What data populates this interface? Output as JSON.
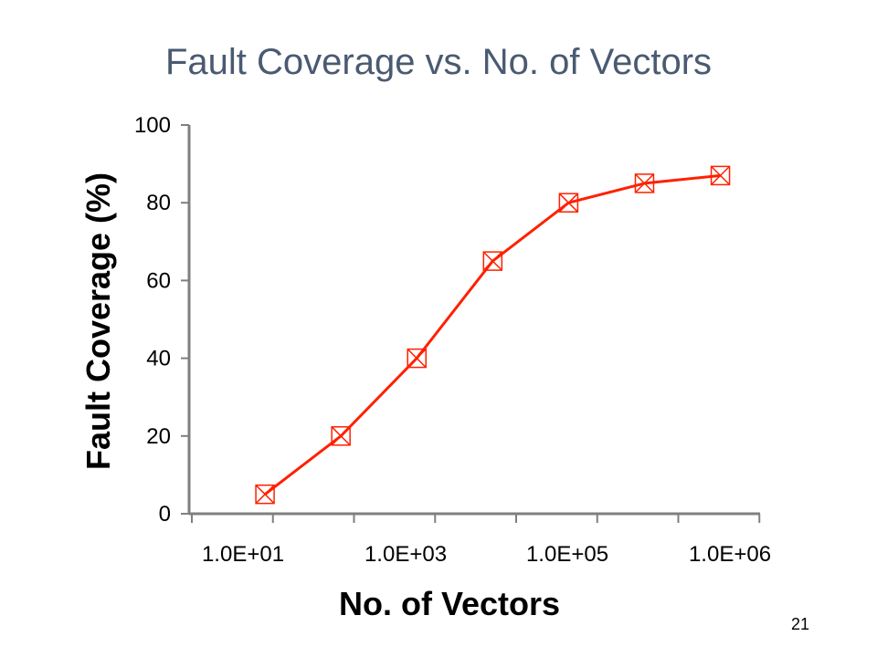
{
  "slide": {
    "title": "Fault Coverage vs. No. of Vectors",
    "page_number": "21"
  },
  "chart_data": {
    "type": "line",
    "title": "Fault Coverage vs. No. of Vectors",
    "xlabel": "No. of Vectors",
    "ylabel": "Fault Coverage (%)",
    "x_scale": "log",
    "x_ticks": [
      {
        "value": 10,
        "label": "1.0E+01"
      },
      {
        "value": 1000,
        "label": "1.0E+03"
      },
      {
        "value": 100000,
        "label": "1.0E+05"
      },
      {
        "value": 1000000,
        "label": "1.0E+06"
      }
    ],
    "y_ticks": [
      0,
      20,
      40,
      60,
      80,
      100
    ],
    "ylim": [
      0,
      100
    ],
    "grid": false,
    "legend": "none",
    "series": [
      {
        "color": "#ff2000",
        "marker": "square-x",
        "points": [
          {
            "x": 30,
            "y": 5
          },
          {
            "x": 300,
            "y": 20
          },
          {
            "x": 3000,
            "y": 40
          },
          {
            "x": 30000,
            "y": 65
          },
          {
            "x": 300000,
            "y": 80
          },
          {
            "x": 3000000,
            "y": 85
          },
          {
            "x": 30000000,
            "y": 87
          }
        ]
      }
    ]
  }
}
